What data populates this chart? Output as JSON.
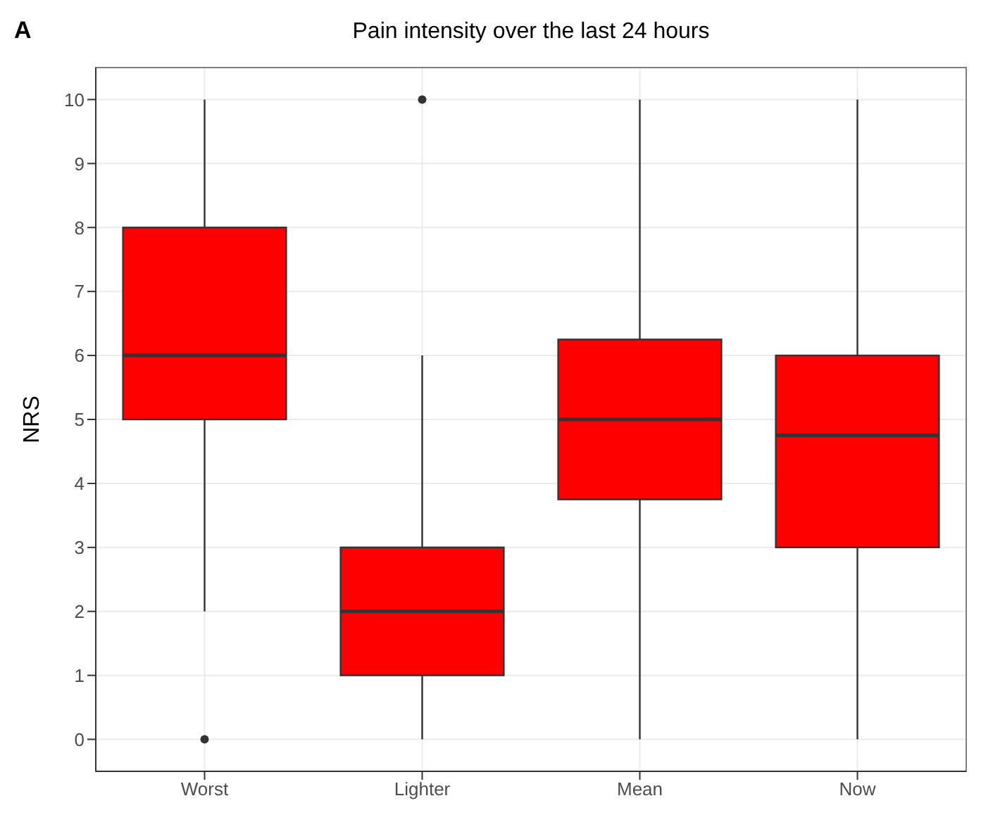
{
  "chart_data": {
    "type": "box",
    "title": "Pain intensity over the last 24 hours",
    "ylabel": "NRS",
    "annotations": [
      "A"
    ],
    "categories": [
      "Worst",
      "Lighter",
      "Mean",
      "Now"
    ],
    "color": "#ff0000",
    "boxes": [
      {
        "low": 2,
        "q1": 5,
        "median": 6,
        "q3": 8,
        "high": 10,
        "outliers": [
          0
        ]
      },
      {
        "low": 0,
        "q1": 1,
        "median": 2,
        "q3": 3,
        "high": 6,
        "outliers": [
          10
        ]
      },
      {
        "low": 0,
        "q1": 3.75,
        "median": 5,
        "q3": 6.25,
        "high": 10
      },
      {
        "low": 0,
        "q1": 3,
        "median": 4.75,
        "q3": 6,
        "high": 10
      }
    ],
    "ylim": [
      -0.5,
      10.5
    ],
    "yticks": [
      0,
      1,
      2,
      3,
      4,
      5,
      6,
      7,
      8,
      9,
      10
    ],
    "grid": true
  }
}
